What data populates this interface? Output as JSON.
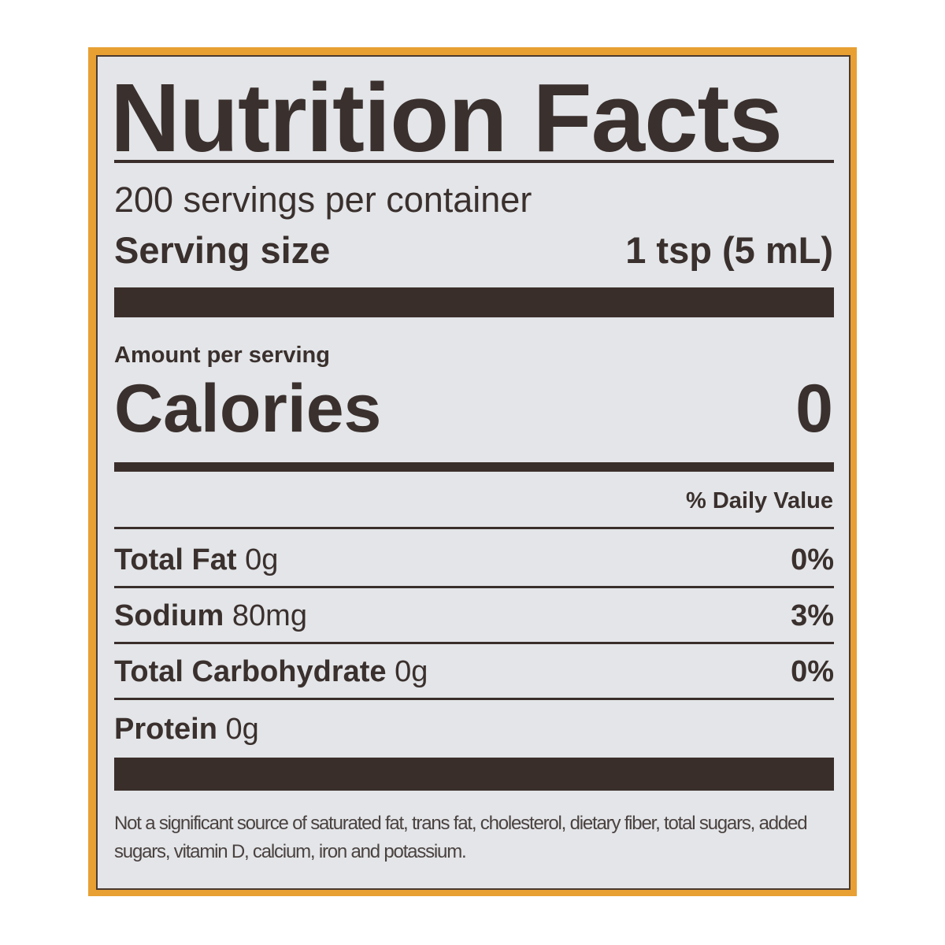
{
  "colors": {
    "frame": "#e8a033",
    "panel": "#e3e5e8",
    "ink": "#3a302d"
  },
  "label": {
    "title": "Nutrition Facts",
    "servings_per_container": "200 servings per container",
    "serving_size_label": "Serving size",
    "serving_size_value": "1 tsp (5 mL)",
    "amount_per_serving": "Amount per serving",
    "calories_label": "Calories",
    "calories_value": "0",
    "daily_value_header": "% Daily Value",
    "nutrients": [
      {
        "name": "Total Fat",
        "amount": "0g",
        "dv": "0%"
      },
      {
        "name": "Sodium",
        "amount": "80mg",
        "dv": "3%"
      },
      {
        "name": "Total Carbohydrate",
        "amount": "0g",
        "dv": "0%"
      },
      {
        "name": "Protein",
        "amount": "0g",
        "dv": ""
      }
    ],
    "footnote": "Not a significant source of saturated fat, trans fat, cholesterol, dietary fiber, total sugars, added sugars, vitamin D, calcium, iron and potassium."
  }
}
